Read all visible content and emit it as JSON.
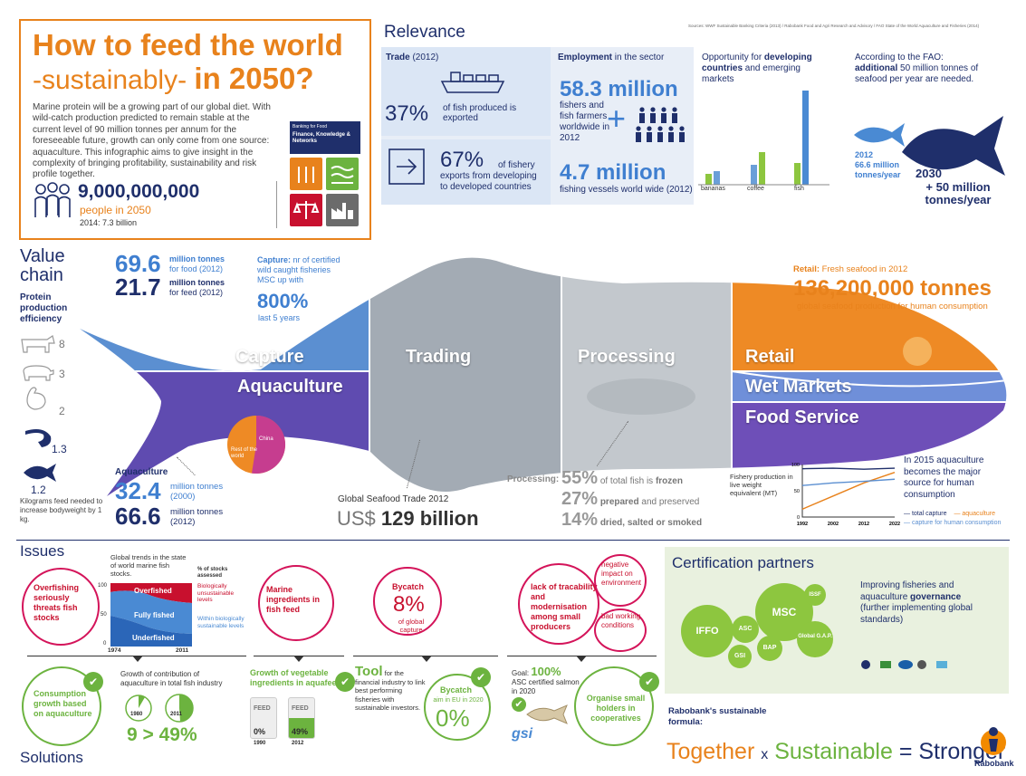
{
  "header": {
    "title_line1": "How to feed the world",
    "title_line2a": "-sustainably-",
    "title_line2b": "in 2050?",
    "intro": "Marine protein will be a growing part of our global diet. With wild-catch production predicted to remain stable at the current level of 90 million tonnes per annum for the foreseeable future, growth can only come from one source: aquaculture. This infographic aims to give insight in the complexity of bringing profitability, sustainability and risk profile together.",
    "population": "9,000,000,000",
    "population_sub": "people in 2050",
    "population_2014": "2014: 7.3 billion",
    "bfr_small": "Banking for Food",
    "bfr_title": "Finance, Knowledge & Networks"
  },
  "relevance": {
    "title": "Relevance",
    "sources": "Sources: WWF Sustainable Banking Criteria (2013) / Rabobank Food and Agri Research and Advisory / FAO State of the World Aquaculture and Fisheries (2014)",
    "trade_label_b": "Trade",
    "trade_label": "(2012)",
    "trade_pct": "37%",
    "trade_desc": "of fish produced is exported",
    "exports_pct": "67%",
    "exports_desc": "of fishery exports from developing to developed countries",
    "emp_label_b": "Employment",
    "emp_label": "in the sector",
    "emp_value": "58.3 million",
    "emp_desc": "fishers and fish farmers worldwide in 2012",
    "vessels_value": "4.7 million",
    "vessels_desc": "fishing vessels world wide (2012)",
    "opp_a": "Opportunity for ",
    "opp_b": "developing countries",
    "opp_c": " and emerging markets",
    "bar_labels": [
      "bananas",
      "coffee",
      "fish"
    ],
    "fao_a": "According to the FAO:",
    "fao_b": "additional",
    "fao_c": " 50 million tonnes of seafood per year are needed.",
    "fish2012_year": "2012",
    "fish2012_value": "66.6 million tonnes/year",
    "fish2030_year": "2030",
    "fish2030_value": "+ 50 million tonnes/year"
  },
  "value_chain": {
    "title_1": "Value",
    "title_2": "chain",
    "efficiency": "Protein production efficiency",
    "efficiency_items": [
      {
        "icon": "cow-icon",
        "value": "8"
      },
      {
        "icon": "pig-icon",
        "value": "3"
      },
      {
        "icon": "chicken-icon",
        "value": "2"
      },
      {
        "icon": "shrimp-icon",
        "value": "1.3"
      },
      {
        "icon": "fish-icon",
        "value": "1.2"
      }
    ],
    "efficiency_note": "Kilograms feed needed to increase bodyweight by 1 kg.",
    "food_value": "69.6",
    "food_desc_b": "million tonnes",
    "food_desc": "for food (2012)",
    "feed_value": "21.7",
    "feed_desc_b": "million tonnes",
    "feed_desc": "for feed (2012)",
    "capture_note_b": "Capture:",
    "capture_note": " nr of certified wild caught fisheries MSC up with",
    "capture_pct": "800%",
    "capture_years": "last 5 years",
    "segments": {
      "capture": "Capture",
      "aquaculture": "Aquaculture",
      "trading": "Trading",
      "processing": "Processing",
      "retail": "Retail",
      "wet_markets": "Wet Markets",
      "food_service": "Food Service"
    },
    "pie_labels": {
      "china": "China",
      "rest": "Rest of the world"
    },
    "aqua_label": "Aquaculture",
    "aqua_2000_value": "32.4",
    "aqua_2000_desc": "million tonnes (2000)",
    "aqua_2012_value": "66.6",
    "aqua_2012_desc": "million tonnes (2012)",
    "trade_label": "Global Seafood Trade 2012",
    "trade_value_prefix": "US$",
    "trade_value": "129 billion",
    "processing_label": "Processing:",
    "proc": [
      {
        "pct": "55%",
        "desc": "of total fish is",
        "desc_b": "frozen"
      },
      {
        "pct": "27%",
        "desc_b": "prepared",
        "desc": "and preserved"
      },
      {
        "pct": "14%",
        "desc_b": "dried, salted or smoked",
        "desc": ""
      }
    ],
    "retail_label_b": "Retail:",
    "retail_label": " Fresh seafood in 2012",
    "retail_value": "136,200,000 tonnes",
    "retail_desc": "global seafood production for human consumption",
    "prod_chart_label": "Fishery production in live weight equivalent (MT)",
    "aqua_note": "In 2015 aquaculture becomes the major source for human consumption",
    "legend_total": "total capture",
    "legend_aqua": "aquaculture",
    "legend_human": "capture for human consumption"
  },
  "chart_data": {
    "type": "line",
    "x": [
      1992,
      2002,
      2012,
      2022
    ],
    "ylim": [
      0,
      100
    ],
    "y_ticks": [
      "100",
      "50",
      "0"
    ],
    "x_ticks": [
      "1992",
      "2002",
      "2012",
      "2022"
    ],
    "series": [
      {
        "name": "total capture",
        "values": [
          92,
          93,
          91,
          93
        ]
      },
      {
        "name": "aquaculture",
        "values": [
          15,
          40,
          65,
          85
        ]
      },
      {
        "name": "capture for human consumption",
        "values": [
          60,
          65,
          68,
          72
        ]
      }
    ]
  },
  "issues": {
    "title": "Issues",
    "overfishing": "Overfishing seriously threats fish stocks",
    "stocks_title": "Global trends in the state of world marine fish stocks.",
    "stocks_pct": "% of stocks assessed",
    "stocks_overfished": "Overfished",
    "stocks_fully": "Fully fished",
    "stocks_under": "Underfished",
    "stocks_y1": "100",
    "stocks_y2": "50",
    "stocks_y3": "0",
    "stocks_x1": "1974",
    "stocks_x2": "2011",
    "legend_bio_unsust": "Biologically unsustainable levels",
    "legend_bio_sust": "Within biologically sustainable levels",
    "marine": "Marine ingredients in fish feed",
    "bycatch_label": "Bycatch",
    "bycatch_value": "8%",
    "bycatch_desc": "of global capture",
    "lack": "lack of tracability and modernisation among small producers",
    "negative": "negative impact on environment",
    "bad": "bad working conditions"
  },
  "solutions": {
    "title": "Solutions",
    "consumption": "Consumption growth based on aquaculture",
    "growth_title": "Growth of contribution of aquaculture in total fish industry",
    "growth_1980": "1980",
    "growth_2011": "2011",
    "growth_formula": "9 > 49%",
    "veg_title": "Growth of vegetable ingredients in aquafeed",
    "feed_label": "FEED",
    "feed_1990_pct": "0%",
    "feed_1990_year": "1990",
    "feed_2012_pct": "49%",
    "feed_2012_year": "2012",
    "tool_b": "Tool",
    "tool": " for the financial industry to link best performing fisheries with sustainable investors.",
    "bycatch2_label": "Bycatch",
    "bycatch2_desc": "aim in EU in 2020",
    "bycatch2_value": "0%",
    "goal_a": "Goal:",
    "goal_b": "100%",
    "goal_desc": "ASC certified salmon in 2020",
    "gsi": "gsi",
    "organise": "Organise small holders in cooperatives"
  },
  "certification": {
    "title": "Certification partners",
    "desc_a": "Improving fisheries and aquaculture ",
    "desc_b": "governance",
    "desc_c": " (further implementing global standards)",
    "gears": [
      "IFFO",
      "ASC",
      "GSI",
      "MSC",
      "BAP",
      "ISSF",
      "Global G.A.P."
    ],
    "formula_label": "Rabobank's sustainable formula:",
    "formula_a": "Together",
    "formula_x": "x",
    "formula_b": "Sustainable",
    "formula_eq": "=",
    "formula_c": "Stronger",
    "brand": "Rabobank"
  },
  "colors": {
    "navy": "#1f2f6b",
    "orange": "#e8821c",
    "blue": "#3f7fd0",
    "green": "#6cb33f",
    "magenta": "#d4145a",
    "purple": "#5b3fa8"
  }
}
